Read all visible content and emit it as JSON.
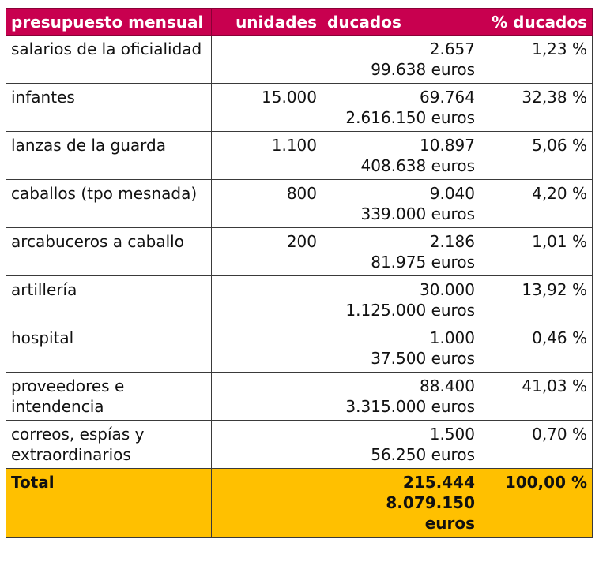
{
  "header": {
    "concept": "presupuesto mensual",
    "units": "unidades",
    "ducats": "ducados",
    "pct": "% ducados"
  },
  "rows": [
    {
      "concept": "salarios de la oficialidad",
      "units": "",
      "ducats": "2.657",
      "euros": "99.638 euros",
      "pct": "1,23 %"
    },
    {
      "concept": "infantes",
      "units": "15.000",
      "ducats": "69.764",
      "euros": "2.616.150 euros",
      "pct": "32,38 %"
    },
    {
      "concept": "lanzas de la guarda",
      "units": "1.100",
      "ducats": "10.897",
      "euros": "408.638 euros",
      "pct": "5,06 %"
    },
    {
      "concept": "caballos (tpo mesnada)",
      "units": "800",
      "ducats": "9.040",
      "euros": "339.000 euros",
      "pct": "4,20 %"
    },
    {
      "concept": "arcabuceros a caballo",
      "units": "200",
      "ducats": "2.186",
      "euros": "81.975 euros",
      "pct": "1,01 %"
    },
    {
      "concept": "artillería",
      "units": "",
      "ducats": "30.000",
      "euros": "1.125.000 euros",
      "pct": "13,92 %"
    },
    {
      "concept": "hospital",
      "units": "",
      "ducats": "1.000",
      "euros": "37.500 euros",
      "pct": "0,46 %"
    },
    {
      "concept": "proveedores e intendencia",
      "units": "",
      "ducats": "88.400",
      "euros": "3.315.000 euros",
      "pct": "41,03 %"
    },
    {
      "concept": "correos, espías y extraordinarios",
      "units": "",
      "ducats": "1.500",
      "euros": "56.250 euros",
      "pct": "0,70 %"
    }
  ],
  "total": {
    "label": "Total",
    "units": "",
    "ducats": "215.444",
    "euros_amount": "8.079.150",
    "euros_unit": "euros",
    "pct": "100,00 %"
  },
  "colors": {
    "header_bg": "#c8004f",
    "total_bg": "#ffc000"
  }
}
